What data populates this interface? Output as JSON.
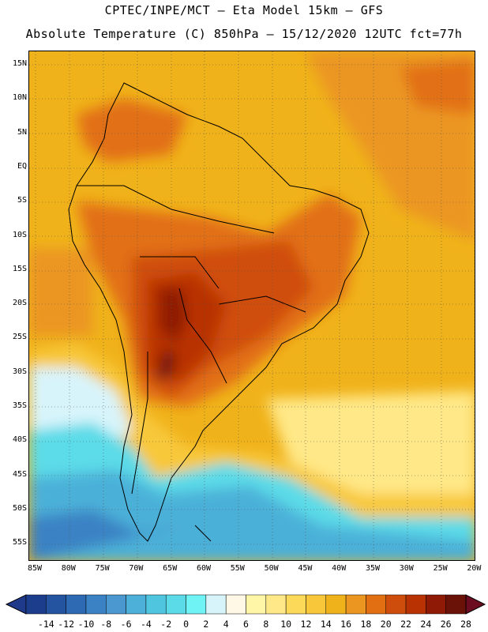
{
  "header": {
    "line1": "CPTEC/INPE/MCT –  Eta Model 15km – GFS",
    "line2": "Absolute Temperature (C) 850hPa – 15/12/2020 12UTC fct=77h"
  },
  "map": {
    "lat_labels": [
      "15N",
      "10N",
      "5N",
      "EQ",
      "5S",
      "10S",
      "15S",
      "20S",
      "25S",
      "30S",
      "35S",
      "40S",
      "45S",
      "50S",
      "55S"
    ],
    "lon_labels": [
      "85W",
      "80W",
      "75W",
      "70W",
      "65W",
      "60W",
      "55W",
      "50W",
      "45W",
      "40W",
      "35W",
      "30W",
      "25W",
      "20W"
    ]
  },
  "colorbar": {
    "labels": [
      "-14",
      "-12",
      "-10",
      "-8",
      "-6",
      "-4",
      "-2",
      "0",
      "2",
      "4",
      "6",
      "8",
      "10",
      "12",
      "14",
      "16",
      "18",
      "20",
      "22",
      "24",
      "26",
      "28"
    ],
    "colors": [
      "#1c3c8c",
      "#2453a0",
      "#2e6ab4",
      "#3b82c4",
      "#4a98cf",
      "#4cb0d8",
      "#4fc5df",
      "#5bdbe8",
      "#6ff3f5",
      "#d8f4fb",
      "#fff8e6",
      "#fff6a8",
      "#ffe887",
      "#fcd959",
      "#f8c83a",
      "#f0b21a",
      "#eb9620",
      "#e27012",
      "#cf4d0c",
      "#b83204",
      "#8f1b06",
      "#6b1208"
    ],
    "low_color": "#1f3a8a",
    "high_color": "#6b0c20"
  }
}
